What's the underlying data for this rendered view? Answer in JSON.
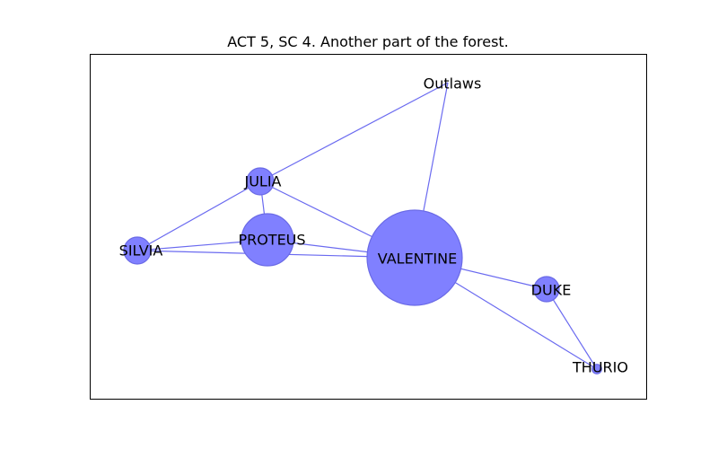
{
  "title": "ACT 5, SC 4. Another part of the forest.",
  "colors": {
    "node_fill": "#8080ff",
    "node_stroke": "#6a6ae6",
    "edge": "#6b6bf0",
    "frame": "#000000"
  },
  "graph": {
    "nodes": [
      {
        "id": "VALENTINE",
        "label": "VALENTINE",
        "weight": 100
      },
      {
        "id": "PROTEUS",
        "label": "PROTEUS",
        "weight": 30
      },
      {
        "id": "JULIA",
        "label": "JULIA",
        "weight": 8
      },
      {
        "id": "SILVIA",
        "label": "SILVIA",
        "weight": 8
      },
      {
        "id": "DUKE",
        "label": "DUKE",
        "weight": 7
      },
      {
        "id": "THURIO",
        "label": "THURIO",
        "weight": 1
      },
      {
        "id": "Outlaws",
        "label": "Outlaws",
        "weight": 0
      }
    ],
    "edges": [
      [
        "Outlaws",
        "JULIA"
      ],
      [
        "Outlaws",
        "VALENTINE"
      ],
      [
        "JULIA",
        "SILVIA"
      ],
      [
        "JULIA",
        "PROTEUS"
      ],
      [
        "JULIA",
        "VALENTINE"
      ],
      [
        "SILVIA",
        "PROTEUS"
      ],
      [
        "SILVIA",
        "VALENTINE"
      ],
      [
        "PROTEUS",
        "VALENTINE"
      ],
      [
        "VALENTINE",
        "DUKE"
      ],
      [
        "VALENTINE",
        "THURIO"
      ],
      [
        "DUKE",
        "THURIO"
      ]
    ]
  }
}
